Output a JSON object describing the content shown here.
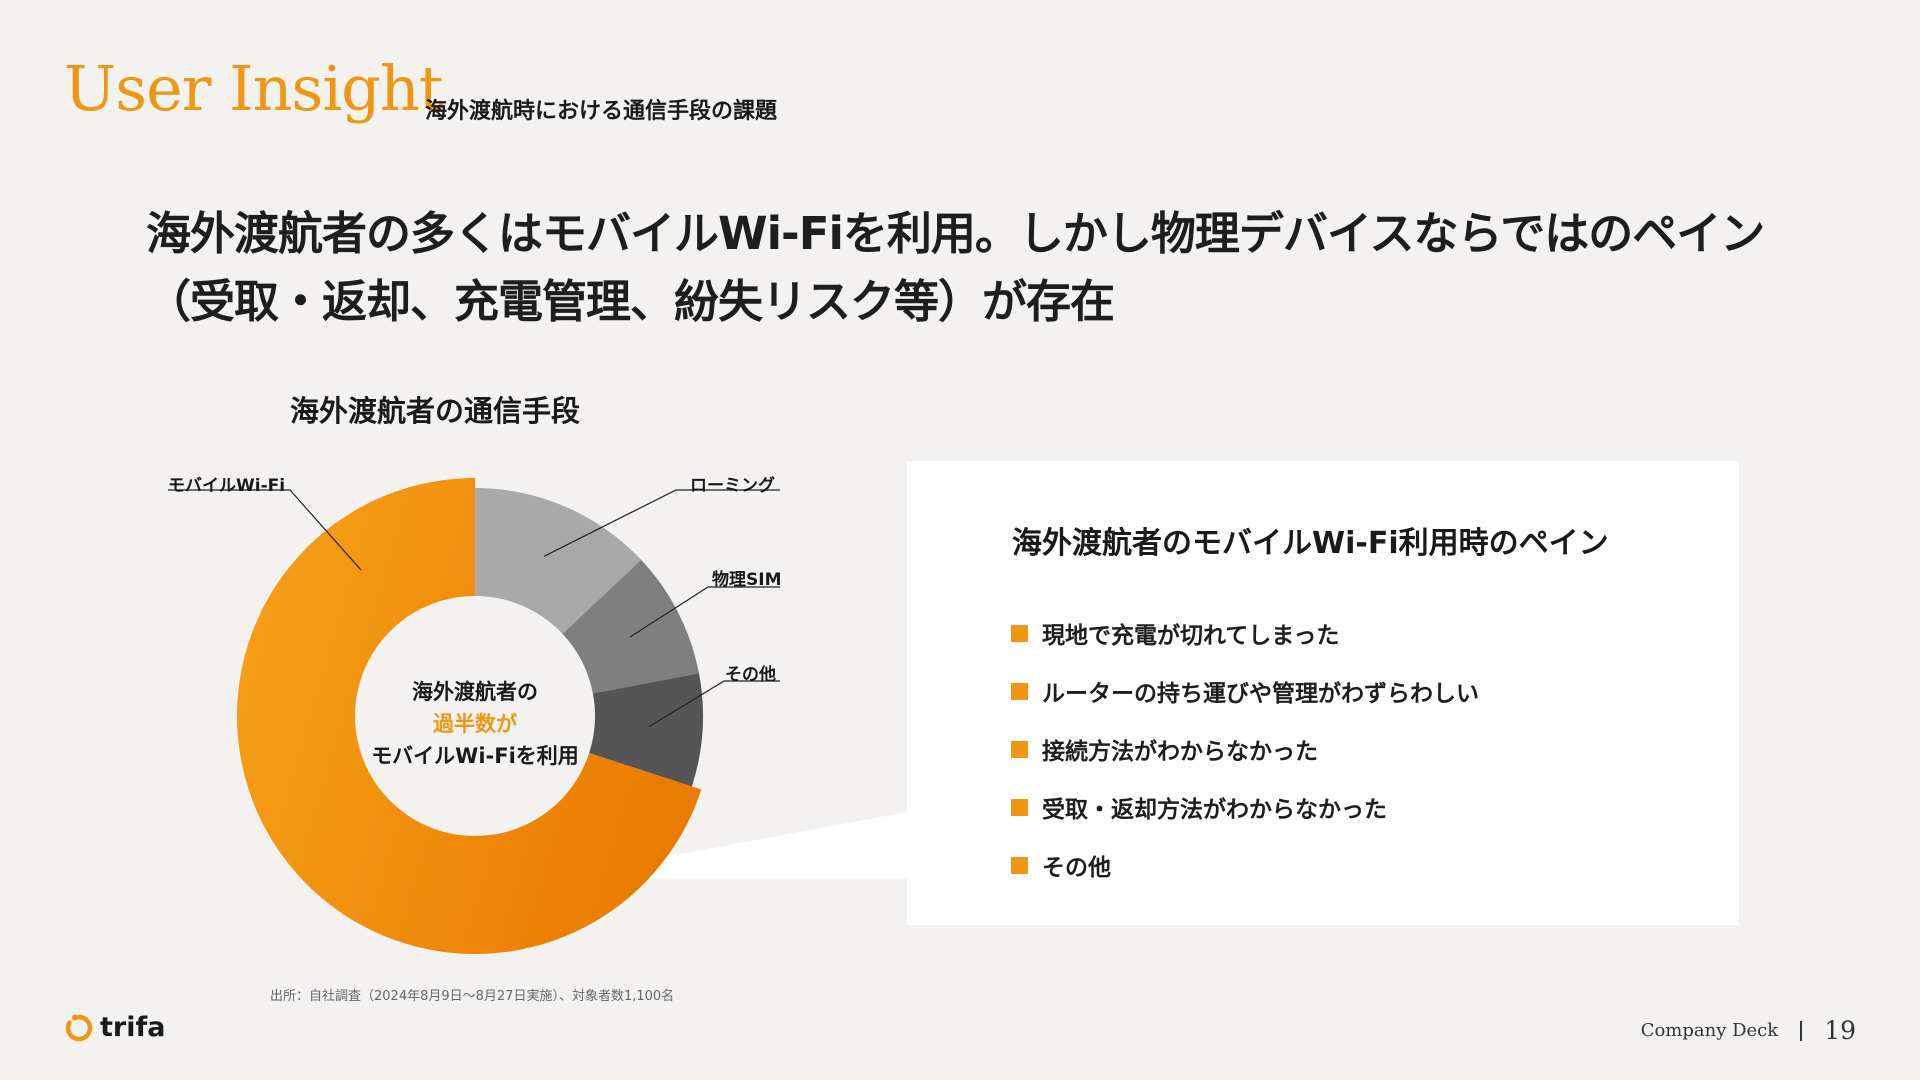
{
  "header": {
    "title": "User Insight",
    "subtitle": "海外渡航時における通信手段の課題"
  },
  "headline": "海外渡航者の多くはモバイルWi-Fiを利用。しかし物理デバイスならではのペイン（受取・返却、充電管理、紛失リスク等）が存在",
  "chart_data": {
    "type": "pie",
    "title": "海外渡航者の通信手段",
    "categories": [
      "モバイルWi-Fi",
      "ローミング",
      "物理SIM",
      "その他"
    ],
    "values": [
      70,
      13,
      9,
      8
    ],
    "colors": [
      "#f39200",
      "#a9a9a9",
      "#7f7f7f",
      "#555555"
    ],
    "center_text": [
      "海外渡航者の",
      "過半数が",
      "モバイルWi-Fiを利用"
    ],
    "highlight_color": "#ef9713"
  },
  "pain_panel": {
    "title": "海外渡航者のモバイルWi-Fi利用時のペイン",
    "items": [
      "現地で充電が切れてしまった",
      "ルーターの持ち運びや管理がわずらわしい",
      "接続方法がわからなかった",
      "受取・返却方法がわからなかった",
      "その他"
    ]
  },
  "source": "出所：自社調査（2024年8月9日〜8月27日実施）、対象者数1,100名",
  "footer": {
    "logo_text": "trifa",
    "deck": "Company Deck",
    "page": "19"
  },
  "icons": {
    "logo": "trifa-logo-icon",
    "bullet": "square-bullet-icon"
  }
}
